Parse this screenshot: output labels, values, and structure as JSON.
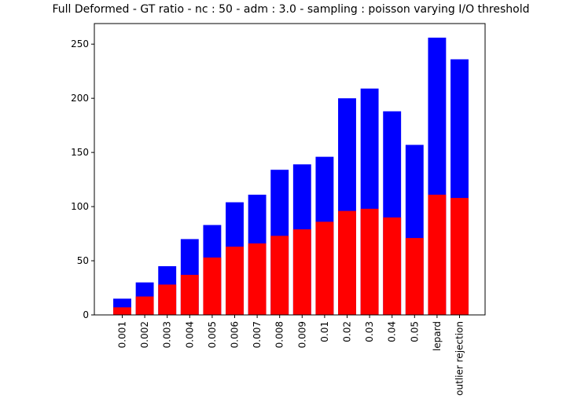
{
  "chart_data": {
    "type": "bar",
    "overlay": true,
    "title": "Full Deformed - GT ratio - nc : 50 - adm : 3.0 - sampling : poisson varying I/O threshold",
    "categories": [
      "0.001",
      "0.002",
      "0.003",
      "0.004",
      "0.005",
      "0.006",
      "0.007",
      "0.008",
      "0.009",
      "0.01",
      "0.02",
      "0.03",
      "0.04",
      "0.05",
      "lepard",
      "outlier rejection"
    ],
    "series": [
      {
        "color": "#0000ff",
        "values": [
          15,
          30,
          45,
          70,
          83,
          104,
          111,
          134,
          139,
          146,
          200,
          209,
          188,
          157,
          256,
          236
        ]
      },
      {
        "color": "#ff0000",
        "values": [
          7,
          17,
          28,
          37,
          53,
          63,
          66,
          73,
          79,
          86,
          96,
          98,
          90,
          71,
          111,
          108
        ]
      }
    ],
    "ylim": [
      0,
      269
    ],
    "yticks": [
      0,
      50,
      100,
      150,
      200,
      250
    ],
    "grid": false
  }
}
